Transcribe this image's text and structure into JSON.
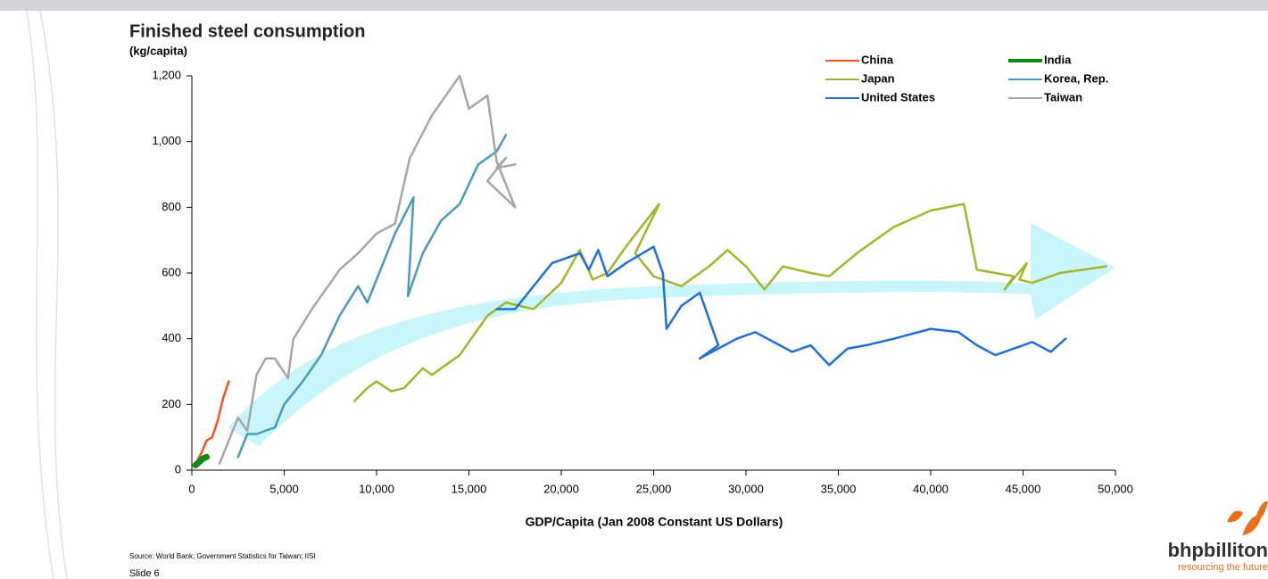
{
  "chart_data": {
    "type": "line",
    "title": "Finished steel consumption",
    "y_label": "(kg/capita)",
    "x_label": "GDP/Capita (Jan 2008 Constant US Dollars)",
    "source": "Source: World Bank; Government Statistics for Taiwan; IISI",
    "slide": "Slide 6",
    "logo": "bhpbilliton",
    "tagline": "resourcing the future",
    "xlim": [
      0,
      50000
    ],
    "ylim": [
      0,
      1200
    ],
    "xticks": [
      0,
      {
        "value": 5000,
        "label": "5,000"
      },
      {
        "value": 10000,
        "label": "10,000"
      },
      {
        "value": 15000,
        "label": "15,000"
      },
      {
        "value": 20000,
        "label": "20,000"
      },
      {
        "value": 25000,
        "label": "25,000"
      },
      {
        "value": 30000,
        "label": "30,000"
      },
      {
        "value": 35000,
        "label": "35,000"
      },
      {
        "value": 40000,
        "label": "40,000"
      },
      {
        "value": 45000,
        "label": "45,000"
      },
      {
        "value": 50000,
        "label": "50,000"
      }
    ],
    "yticks": [
      0,
      200,
      400,
      600,
      800,
      {
        "value": 1000,
        "label": "1,000"
      },
      {
        "value": 1200,
        "label": "1,200"
      }
    ],
    "series": [
      {
        "name": "China",
        "color": "#f0561c",
        "x": [
          200,
          500,
          800,
          1100,
          1400,
          1700,
          2000
        ],
        "values": [
          20,
          50,
          90,
          100,
          150,
          220,
          270
        ]
      },
      {
        "name": "India",
        "color": "#0f8a12",
        "x": [
          200,
          400,
          600,
          800
        ],
        "values": [
          15,
          25,
          35,
          40
        ]
      },
      {
        "name": "Japan",
        "color": "#a3b52a",
        "x": [
          8800,
          9500,
          10000,
          10800,
          11500,
          12500,
          13000,
          14500,
          16000,
          17000,
          18500,
          20000,
          21000,
          21700,
          22500,
          23500,
          25300,
          24000,
          25000,
          26500,
          28000,
          29000,
          30000,
          31000,
          32000,
          33500,
          34500,
          36000,
          38000,
          40000,
          41800,
          42500,
          43500,
          44500,
          44000,
          45200,
          44800,
          45500,
          47000,
          49500
        ],
        "values": [
          210,
          250,
          270,
          240,
          250,
          310,
          290,
          350,
          470,
          510,
          490,
          570,
          670,
          580,
          600,
          680,
          810,
          660,
          590,
          560,
          620,
          670,
          620,
          550,
          620,
          600,
          590,
          660,
          740,
          790,
          810,
          610,
          600,
          590,
          550,
          630,
          580,
          570,
          600,
          620
        ]
      },
      {
        "name": "Korea, Rep.",
        "color": "#4a9bb8",
        "x": [
          2500,
          3000,
          3500,
          4500,
          5000,
          6000,
          7000,
          8000,
          9000,
          9500,
          10500,
          11000,
          12000,
          11700,
          12500,
          13500,
          14500,
          15500,
          16500,
          17000
        ],
        "values": [
          40,
          110,
          110,
          130,
          200,
          270,
          350,
          470,
          560,
          510,
          650,
          720,
          830,
          530,
          660,
          760,
          810,
          930,
          970,
          1020
        ]
      },
      {
        "name": "United States",
        "color": "#1f6fd6",
        "x": [
          16500,
          17500,
          18500,
          19500,
          21000,
          21500,
          22000,
          22500,
          23500,
          25000,
          25500,
          25700,
          26500,
          27500,
          28000,
          28500,
          27500,
          29500,
          30500,
          31500,
          32500,
          33500,
          34500,
          35500,
          36500,
          38000,
          40000,
          41500,
          42500,
          43500,
          44500,
          45500,
          46500,
          47300
        ],
        "values": [
          490,
          490,
          560,
          630,
          660,
          610,
          670,
          590,
          630,
          680,
          600,
          430,
          500,
          540,
          460,
          380,
          340,
          400,
          420,
          390,
          360,
          380,
          320,
          370,
          380,
          400,
          430,
          420,
          380,
          350,
          370,
          390,
          360,
          400
        ]
      },
      {
        "name": "Taiwan",
        "color": "#a6a6a6",
        "x": [
          1500,
          2000,
          2500,
          3000,
          3500,
          4000,
          4500,
          5200,
          5500,
          6500,
          8000,
          9000,
          10000,
          11000,
          11800,
          13000,
          14500,
          15000,
          16000,
          16500,
          17500,
          16000,
          17000,
          16500,
          17500
        ],
        "values": [
          20,
          90,
          160,
          120,
          290,
          340,
          340,
          280,
          400,
          490,
          610,
          660,
          720,
          750,
          950,
          1080,
          1200,
          1100,
          1140,
          940,
          800,
          880,
          950,
          920,
          930
        ]
      }
    ]
  }
}
